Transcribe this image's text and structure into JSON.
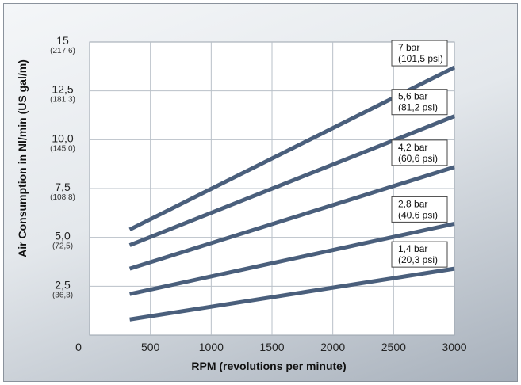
{
  "chart_data": {
    "type": "line",
    "xlabel": "RPM (revolutions per minute)",
    "ylabel": "Air Consumption in Nl/min (US gal/m)",
    "xlim": [
      0,
      3000
    ],
    "ylim": [
      0,
      15
    ],
    "grid": true,
    "x_ticks": [
      "0",
      "500",
      "1000",
      "1500",
      "2000",
      "2500",
      "3000"
    ],
    "y_ticks": [
      {
        "value": 2.5,
        "label": "2,5",
        "sub": "(36,3)"
      },
      {
        "value": 5.0,
        "label": "5,0",
        "sub": "(72,5)"
      },
      {
        "value": 7.5,
        "label": "7,5",
        "sub": "(108,8)"
      },
      {
        "value": 10.0,
        "label": "10,0",
        "sub": "(145,0)"
      },
      {
        "value": 12.5,
        "label": "12,5",
        "sub": "(181,3)"
      },
      {
        "value": 15,
        "label": "15",
        "sub": "(217,6)"
      }
    ],
    "line_color": "#4a5f7c",
    "series": [
      {
        "name": "7 bar",
        "sub": "(101,5 psi)",
        "x": [
          330,
          3000
        ],
        "y": [
          5.4,
          13.7
        ]
      },
      {
        "name": "5,6 bar",
        "sub": "(81,2 psi)",
        "x": [
          330,
          3000
        ],
        "y": [
          4.6,
          11.2
        ]
      },
      {
        "name": "4,2 bar",
        "sub": "(60,6 psi)",
        "x": [
          330,
          3000
        ],
        "y": [
          3.4,
          8.6
        ]
      },
      {
        "name": "2,8 bar",
        "sub": "(40,6 psi)",
        "x": [
          330,
          3000
        ],
        "y": [
          2.1,
          5.7
        ]
      },
      {
        "name": "1,4 bar",
        "sub": "(20,3 psi)",
        "x": [
          330,
          3000
        ],
        "y": [
          0.8,
          3.4
        ]
      }
    ]
  }
}
